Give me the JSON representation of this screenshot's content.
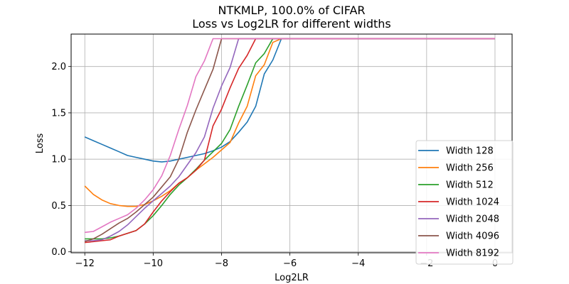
{
  "chart_data": {
    "type": "line",
    "title": "NTKMLP, 100.0% of CIFAR",
    "subtitle": "Loss vs Log2LR for different widths",
    "xlabel": "Log2LR",
    "ylabel": "Loss",
    "xlim": [
      -12.4,
      0.5
    ],
    "ylim": [
      -0.01,
      2.35
    ],
    "xticks": [
      -12,
      -10,
      -8,
      -6,
      -4,
      -2,
      0
    ],
    "xtick_labels": [
      "−12",
      "−10",
      "−8",
      "−6",
      "−4",
      "−2",
      "0"
    ],
    "yticks": [
      0.0,
      0.5,
      1.0,
      1.5,
      2.0
    ],
    "ytick_labels": [
      "0.0",
      "0.5",
      "1.0",
      "1.5",
      "2.0"
    ],
    "grid": true,
    "legend_position": "lower-right",
    "x": [
      -12,
      -11.75,
      -11.5,
      -11.25,
      -11,
      -10.75,
      -10.5,
      -10.25,
      -10,
      -9.75,
      -9.5,
      -9.25,
      -9,
      -8.75,
      -8.5,
      -8.25,
      -8,
      -7.75,
      -7.5,
      -7.25,
      -7,
      -6.75,
      -6.5,
      -6.25,
      -6,
      -5.75,
      -5.5,
      -5.25,
      -5,
      -4.75,
      -4.5,
      -4.25,
      -4,
      -3.75,
      -3.5,
      -3.25,
      -3,
      -2.75,
      -2.5,
      -2.25,
      -2,
      -1.75,
      -1.5,
      -1.25,
      -1,
      -0.75,
      -0.5,
      -0.25,
      0
    ],
    "series": [
      {
        "name": "Width 128",
        "color": "#1f77b4",
        "values": [
          1.24,
          1.2,
          1.16,
          1.12,
          1.08,
          1.04,
          1.02,
          1.0,
          0.98,
          0.97,
          0.98,
          1.0,
          1.02,
          1.04,
          1.06,
          1.09,
          1.13,
          1.19,
          1.29,
          1.4,
          1.57,
          1.92,
          2.07,
          2.3,
          2.3,
          2.3,
          2.3,
          2.3,
          2.3,
          2.3,
          2.3,
          2.3,
          2.3,
          2.3,
          2.3,
          2.3,
          2.3,
          2.3,
          2.3,
          2.3,
          2.3,
          2.3,
          2.3,
          2.3,
          2.3,
          2.3,
          2.3,
          2.3,
          2.3
        ]
      },
      {
        "name": "Width 256",
        "color": "#ff7f0e",
        "values": [
          0.71,
          0.62,
          0.56,
          0.52,
          0.5,
          0.49,
          0.49,
          0.51,
          0.55,
          0.6,
          0.66,
          0.74,
          0.8,
          0.88,
          0.95,
          1.02,
          1.1,
          1.18,
          1.39,
          1.57,
          1.9,
          2.02,
          2.26,
          2.3,
          2.3,
          2.3,
          2.3,
          2.3,
          2.3,
          2.3,
          2.3,
          2.3,
          2.3,
          2.3,
          2.3,
          2.3,
          2.3,
          2.3,
          2.3,
          2.3,
          2.3,
          2.3,
          2.3,
          2.3,
          2.3,
          2.3,
          2.3,
          2.3,
          2.3
        ]
      },
      {
        "name": "Width 512",
        "color": "#2ca02c",
        "values": [
          0.14,
          0.14,
          0.14,
          0.15,
          0.17,
          0.2,
          0.23,
          0.3,
          0.39,
          0.5,
          0.62,
          0.72,
          0.8,
          0.89,
          0.99,
          1.08,
          1.17,
          1.32,
          1.57,
          1.8,
          2.04,
          2.14,
          2.3,
          2.3,
          2.3,
          2.3,
          2.3,
          2.3,
          2.3,
          2.3,
          2.3,
          2.3,
          2.3,
          2.3,
          2.3,
          2.3,
          2.3,
          2.3,
          2.3,
          2.3,
          2.3,
          2.3,
          2.3,
          2.3,
          2.3,
          2.3,
          2.3,
          2.3,
          2.3
        ]
      },
      {
        "name": "Width 1024",
        "color": "#d62728",
        "values": [
          0.1,
          0.11,
          0.12,
          0.13,
          0.17,
          0.2,
          0.23,
          0.3,
          0.43,
          0.55,
          0.65,
          0.74,
          0.8,
          0.88,
          0.99,
          1.36,
          1.54,
          1.77,
          1.98,
          2.12,
          2.3,
          2.3,
          2.3,
          2.3,
          2.3,
          2.3,
          2.3,
          2.3,
          2.3,
          2.3,
          2.3,
          2.3,
          2.3,
          2.3,
          2.3,
          2.3,
          2.3,
          2.3,
          2.3,
          2.3,
          2.3,
          2.3,
          2.3,
          2.3,
          2.3,
          2.3,
          2.3,
          2.3,
          2.3
        ]
      },
      {
        "name": "Width 2048",
        "color": "#9467bd",
        "values": [
          0.12,
          0.12,
          0.13,
          0.17,
          0.22,
          0.29,
          0.38,
          0.47,
          0.55,
          0.63,
          0.71,
          0.81,
          0.94,
          1.07,
          1.24,
          1.55,
          1.79,
          1.99,
          2.3,
          2.3,
          2.3,
          2.3,
          2.3,
          2.3,
          2.3,
          2.3,
          2.3,
          2.3,
          2.3,
          2.3,
          2.3,
          2.3,
          2.3,
          2.3,
          2.3,
          2.3,
          2.3,
          2.3,
          2.3,
          2.3,
          2.3,
          2.3,
          2.3,
          2.3,
          2.3,
          2.3,
          2.3,
          2.3,
          2.3
        ]
      },
      {
        "name": "Width 4096",
        "color": "#8c564b",
        "values": [
          0.11,
          0.14,
          0.19,
          0.25,
          0.31,
          0.36,
          0.43,
          0.51,
          0.59,
          0.7,
          0.81,
          1.0,
          1.29,
          1.53,
          1.75,
          1.97,
          2.3,
          2.3,
          2.3,
          2.3,
          2.3,
          2.3,
          2.3,
          2.3,
          2.3,
          2.3,
          2.3,
          2.3,
          2.3,
          2.3,
          2.3,
          2.3,
          2.3,
          2.3,
          2.3,
          2.3,
          2.3,
          2.3,
          2.3,
          2.3,
          2.3,
          2.3,
          2.3,
          2.3,
          2.3,
          2.3,
          2.3,
          2.3,
          2.3
        ]
      },
      {
        "name": "Width 8192",
        "color": "#e377c2",
        "values": [
          0.21,
          0.22,
          0.27,
          0.32,
          0.36,
          0.4,
          0.47,
          0.56,
          0.67,
          0.82,
          1.04,
          1.32,
          1.58,
          1.89,
          2.06,
          2.3,
          2.3,
          2.3,
          2.3,
          2.3,
          2.3,
          2.3,
          2.3,
          2.3,
          2.3,
          2.3,
          2.3,
          2.3,
          2.3,
          2.3,
          2.3,
          2.3,
          2.3,
          2.3,
          2.3,
          2.3,
          2.3,
          2.3,
          2.3,
          2.3,
          2.3,
          2.3,
          2.3,
          2.3,
          2.3,
          2.3,
          2.3,
          2.3,
          2.3
        ]
      }
    ]
  }
}
